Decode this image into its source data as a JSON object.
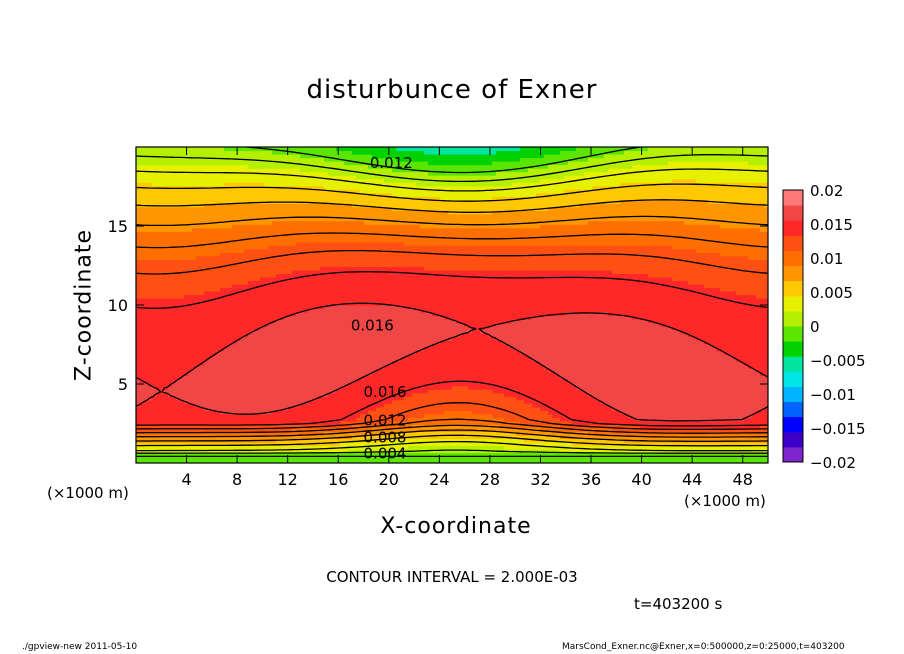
{
  "chart_data": {
    "type": "contour",
    "title": "disturbunce of Exner",
    "xlabel": "X-coordinate",
    "ylabel": "Z-coordinate",
    "x_unit_left": "(×1000 m)",
    "x_unit_right": "(×1000 m)",
    "xlim": [
      0,
      50
    ],
    "ylim": [
      0,
      20
    ],
    "xticks": [
      4,
      8,
      12,
      16,
      20,
      24,
      28,
      32,
      36,
      40,
      44,
      48
    ],
    "yticks": [
      5,
      10,
      15
    ],
    "contour_interval": "CONTOUR INTERVAL = 2.000E-03",
    "contour_labels": [
      {
        "text": "0.012",
        "x": 18.5,
        "y": 19.0
      },
      {
        "text": "0.016",
        "x": 17.0,
        "y": 8.7
      },
      {
        "text": "0.016",
        "x": 18.0,
        "y": 4.5
      },
      {
        "text": "0.012",
        "x": 18.0,
        "y": 2.7
      },
      {
        "text": "0.008",
        "x": 18.0,
        "y": 1.6
      },
      {
        "text": "0.004",
        "x": 18.0,
        "y": 0.6
      }
    ],
    "colorbar": {
      "levels": [
        -0.02,
        -0.015,
        -0.01,
        -0.005,
        0,
        0.005,
        0.01,
        0.015,
        0.02
      ],
      "tick_labels": [
        "0.02",
        "0.015",
        "0.01",
        "0.005",
        "0",
        "−0.005",
        "−0.01",
        "−0.015",
        "−0.02"
      ],
      "colors": [
        "#7d26cd",
        "#3c00c8",
        "#0000ff",
        "#0064ff",
        "#00b4ff",
        "#00e6e6",
        "#00e6a0",
        "#00d200",
        "#5ae600",
        "#b4f000",
        "#e6f000",
        "#ffc800",
        "#ff9600",
        "#ff6e00",
        "#ff5014",
        "#ff2828",
        "#f04646",
        "#ff7878"
      ]
    },
    "time_label": "t=403200 s"
  },
  "footer": {
    "left": "./gpview-new   2011-05-10",
    "right": "MarsCond_Exner.nc@Exner,x=0:500000,z=0:25000,t=403200"
  }
}
